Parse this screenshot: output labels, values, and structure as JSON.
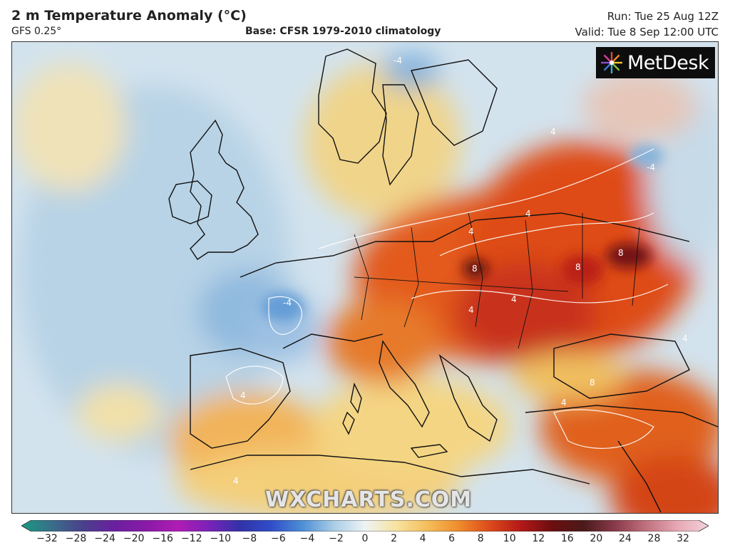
{
  "header": {
    "title": "2 m Temperature Anomaly (°C)",
    "model": "GFS 0.25°",
    "base": "Base: CFSR 1979-2010 climatology",
    "run": "Run: Tue 25 Aug 12Z",
    "valid": "Valid: Tue 8 Sep 12:00 UTC"
  },
  "logo": {
    "text": "MetDesk"
  },
  "watermark": "WXCHARTS.COM",
  "colorbar": {
    "labels": [
      "−32",
      "−28",
      "−24",
      "−20",
      "−16",
      "−12",
      "−10",
      "−8",
      "−6",
      "−4",
      "−2",
      "0",
      "2",
      "4",
      "6",
      "8",
      "10",
      "12",
      "16",
      "20",
      "24",
      "28",
      "32"
    ],
    "colors": [
      "#1a9a82",
      "#3a6d8a",
      "#4b3f8c",
      "#6a1fa0",
      "#8a1aa8",
      "#b01cb4",
      "#7a22b8",
      "#3232a8",
      "#2f4ec8",
      "#4e8fd6",
      "#a9cde6",
      "#eef3f5",
      "#f7e3a0",
      "#f4be5a",
      "#ef8c2c",
      "#dc4a1a",
      "#b31818",
      "#6b0e10",
      "#4a1a1a",
      "#8a3a4a",
      "#c0707e",
      "#e6a8b4",
      "#f3d2d8"
    ]
  },
  "contour_labels": [
    "-4",
    "4",
    "4",
    "4",
    "8",
    "8",
    "8",
    "4",
    "-4",
    "4",
    "8",
    "4",
    "4",
    "4",
    "-4",
    "4"
  ],
  "icons": {
    "logo": "metdesk-burst-icon"
  }
}
